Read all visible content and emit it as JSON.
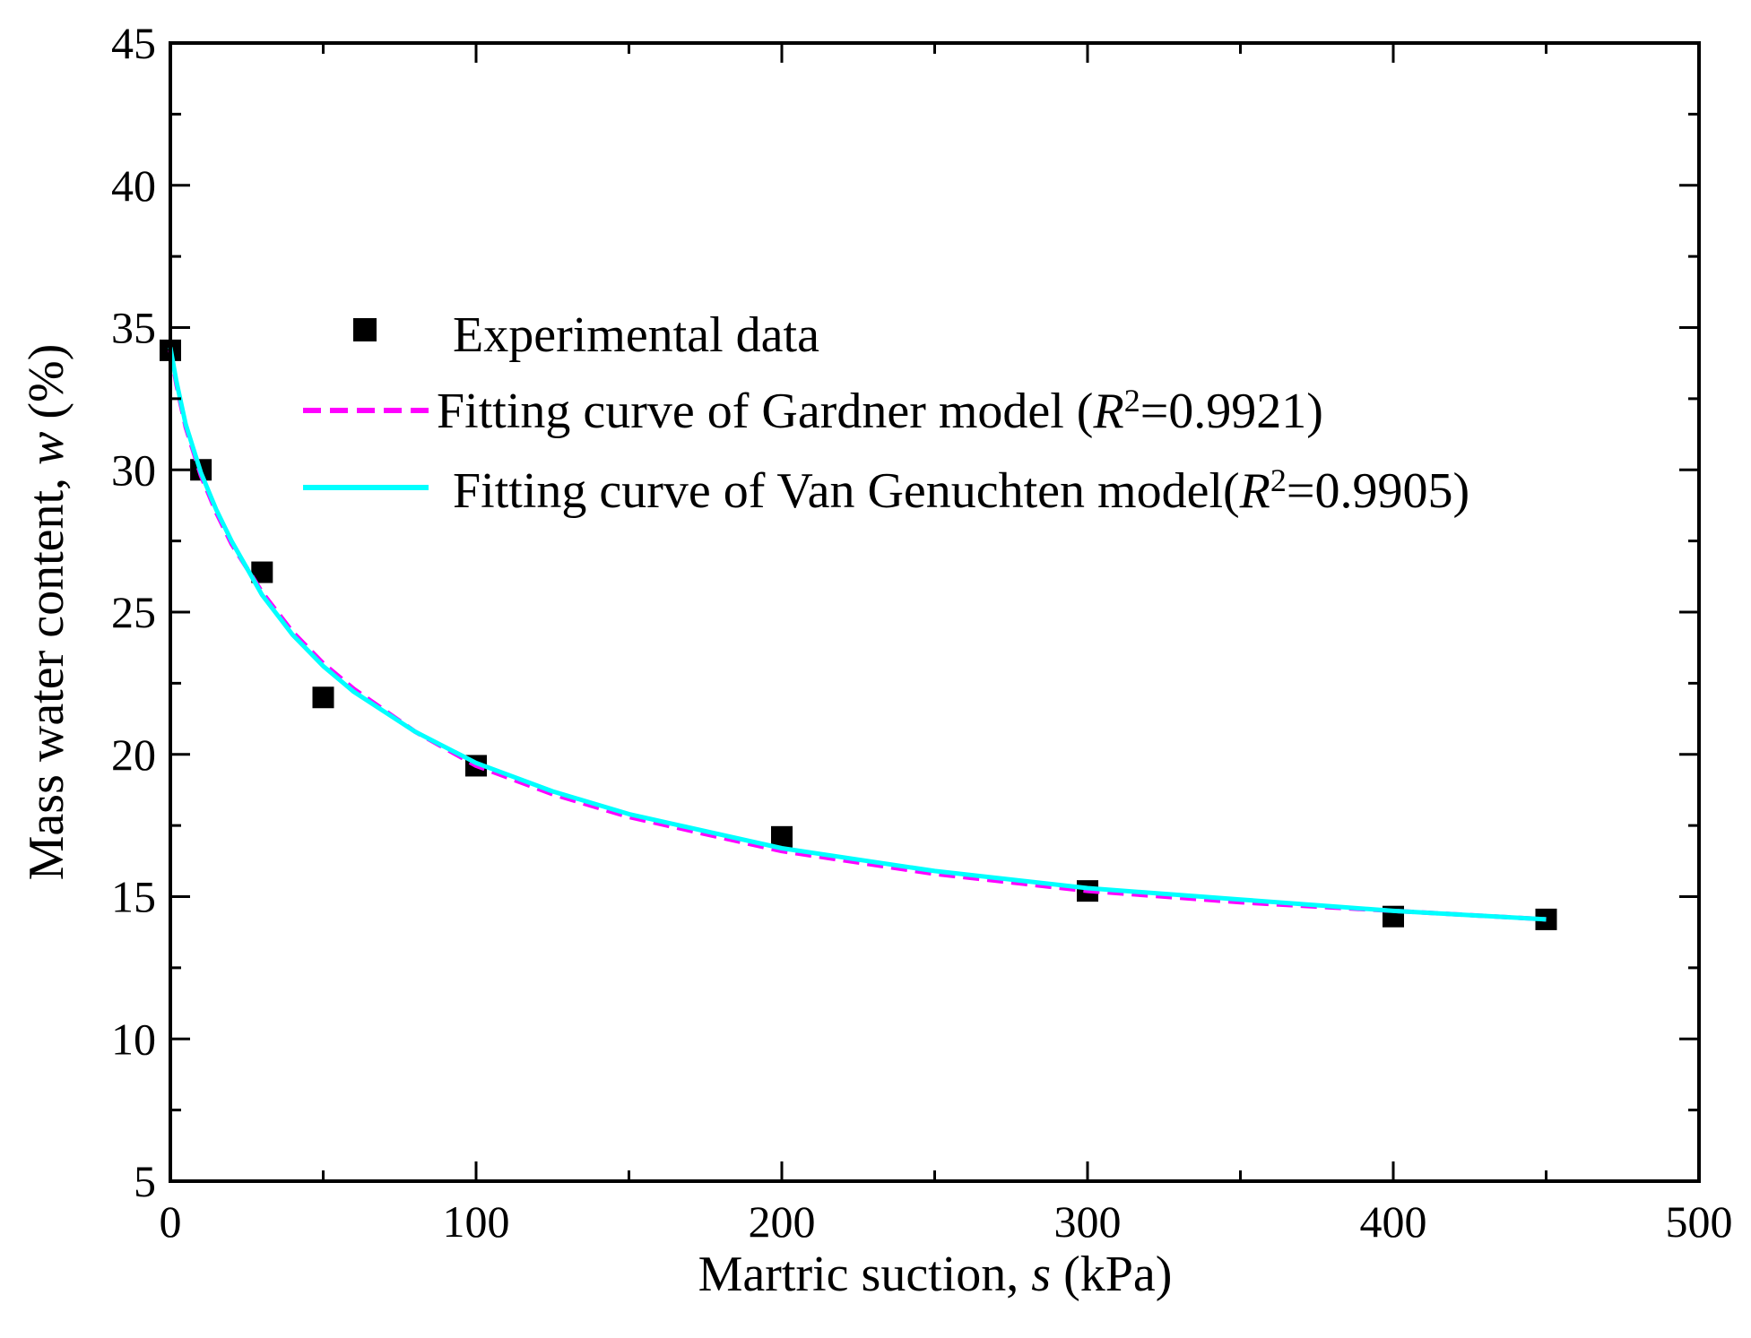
{
  "chart_data": {
    "type": "scatter",
    "title": "",
    "xlabel": {
      "prefix": "Martric suction, ",
      "var": "s",
      "suffix": " (kPa)"
    },
    "ylabel": {
      "prefix": "Mass water content, ",
      "var": "w",
      "suffix": " (%)"
    },
    "xlim": [
      0,
      500
    ],
    "ylim": [
      5,
      45
    ],
    "xticks": [
      0,
      100,
      200,
      300,
      400,
      500
    ],
    "yticks": [
      5,
      10,
      15,
      20,
      25,
      30,
      35,
      40,
      45
    ],
    "xtick_labels": [
      "0",
      "100",
      "200",
      "300",
      "400",
      "500"
    ],
    "ytick_labels": [
      "5",
      "10",
      "15",
      "20",
      "25",
      "30",
      "35",
      "40",
      "45"
    ],
    "grid": false,
    "legend_position": "top-right",
    "series": [
      {
        "name": "Experimental data",
        "kind": "scatter",
        "marker": "square",
        "color": "#000000",
        "x": [
          0,
          10,
          30,
          50,
          100,
          200,
          300,
          400,
          450
        ],
        "y": [
          34.2,
          30.0,
          26.4,
          22.0,
          19.6,
          17.1,
          15.2,
          14.3,
          14.2
        ]
      },
      {
        "name": "Gardner",
        "kind": "line",
        "style": "dashed",
        "color": "#ff00ff",
        "legend_parts": {
          "pre": "Fitting curve of Gardner model (",
          "r": "R",
          "sup": "2",
          "post": "=0.9921)"
        },
        "x": [
          0,
          2,
          5,
          10,
          15,
          20,
          30,
          40,
          50,
          60,
          80,
          100,
          125,
          150,
          200,
          250,
          300,
          350,
          400,
          450
        ],
        "y": [
          34.2,
          33.0,
          31.5,
          29.8,
          28.5,
          27.4,
          25.7,
          24.3,
          23.2,
          22.3,
          20.8,
          19.6,
          18.6,
          17.8,
          16.6,
          15.8,
          15.2,
          14.8,
          14.5,
          14.2
        ]
      },
      {
        "name": "Van Genuchten",
        "kind": "line",
        "style": "solid",
        "color": "#00ffff",
        "legend_parts": {
          "pre": "Fitting curve of  Van Genuchten model(",
          "r": "R",
          "sup": "2",
          "post": "=0.9905)"
        },
        "x": [
          0,
          2,
          5,
          10,
          15,
          20,
          30,
          40,
          50,
          60,
          80,
          100,
          125,
          150,
          200,
          250,
          300,
          350,
          400,
          450
        ],
        "y": [
          34.3,
          33.1,
          31.6,
          29.9,
          28.6,
          27.5,
          25.6,
          24.2,
          23.1,
          22.2,
          20.8,
          19.7,
          18.7,
          17.9,
          16.7,
          15.9,
          15.3,
          14.9,
          14.5,
          14.2
        ]
      }
    ]
  }
}
